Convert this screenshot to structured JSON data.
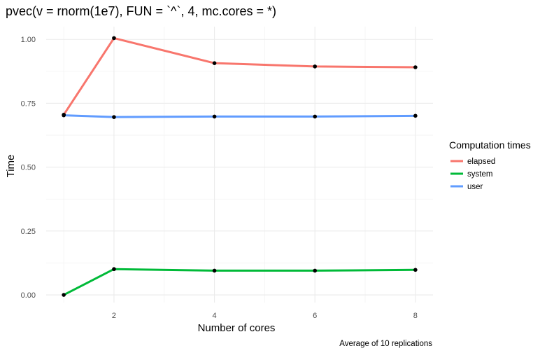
{
  "chart_data": {
    "type": "line",
    "title": "pvec(v = rnorm(1e7), FUN = `^`, 4, mc.cores = *)",
    "xlabel": "Number of cores",
    "ylabel": "Time",
    "caption": "Average of 10 replications",
    "x": [
      1,
      2,
      4,
      6,
      8
    ],
    "xlim": [
      0.65,
      8.35
    ],
    "ylim": [
      -0.03,
      1.05
    ],
    "x_ticks": [
      2,
      4,
      6,
      8
    ],
    "y_ticks": [
      0.0,
      0.25,
      0.5,
      0.75,
      1.0
    ],
    "x_tick_labels": [
      "2",
      "4",
      "6",
      "8"
    ],
    "y_tick_labels": [
      "0.00",
      "0.25",
      "0.50",
      "0.75",
      "1.00"
    ],
    "grid": true,
    "legend": {
      "title": "Computation times",
      "placement": "right"
    },
    "series": [
      {
        "name": "elapsed",
        "color": "#F8766D",
        "values": [
          0.705,
          1.005,
          0.907,
          0.894,
          0.891
        ]
      },
      {
        "name": "system",
        "color": "#00BA38",
        "values": [
          0.0,
          0.101,
          0.095,
          0.095,
          0.098
        ]
      },
      {
        "name": "user",
        "color": "#619CFF",
        "values": [
          0.703,
          0.696,
          0.698,
          0.698,
          0.701
        ]
      }
    ]
  }
}
